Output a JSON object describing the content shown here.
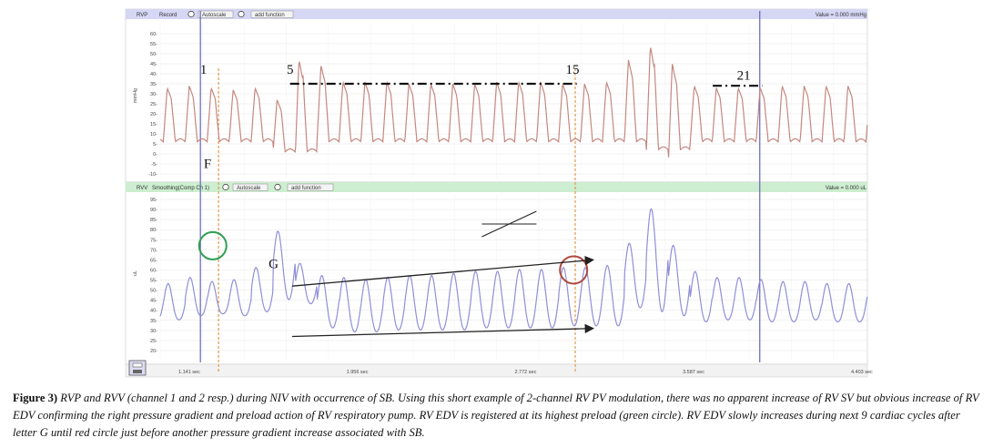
{
  "chart_data": [
    {
      "type": "line",
      "channel": "RVP",
      "toolbar": {
        "name": "RVP",
        "mode": "Record",
        "btn_autoscale": "Autoscale",
        "btn_add": "add function",
        "value": "Value = 0.000 mmHg"
      },
      "ylabel": "mmHg",
      "ylim": [
        -10,
        60
      ],
      "yticks": [
        -10,
        -5,
        0,
        5,
        10,
        15,
        20,
        25,
        30,
        35,
        40,
        45,
        50,
        55,
        60
      ],
      "color": "#c48880",
      "annotations": [
        {
          "text": "1",
          "t": 1.21,
          "y": 40
        },
        {
          "text": "5",
          "t": 1.63,
          "y": 40
        },
        {
          "text": "15",
          "t": 3.0,
          "y": 40
        },
        {
          "text": "21",
          "t": 3.83,
          "y": 37
        },
        {
          "text": "F",
          "t": 1.23,
          "y": -7
        }
      ],
      "dashdot_lines": [
        {
          "t1": 1.63,
          "t2": 3.02,
          "y": 35
        },
        {
          "t1": 3.68,
          "t2": 3.92,
          "y": 34
        }
      ]
    },
    {
      "type": "line",
      "channel": "RVV",
      "toolbar": {
        "name": "RVV",
        "mode": "Smoothing(Comp Ch 1)",
        "btn_autoscale": "Autoscale",
        "btn_add": "add function",
        "value": "Value = 0.000 uL"
      },
      "ylabel": "uL",
      "ylim": [
        20,
        95
      ],
      "yticks": [
        20,
        25,
        30,
        35,
        40,
        45,
        50,
        55,
        60,
        65,
        70,
        75,
        80,
        85,
        90,
        95
      ],
      "color": "#8f8fd9",
      "annotations": [
        {
          "text": "G",
          "t": 1.55,
          "y": 61
        }
      ],
      "circles": [
        {
          "color": "#2e9e55",
          "t": 1.255,
          "y": 72
        },
        {
          "color": "#b04a3f",
          "t": 3.005,
          "y": 60
        }
      ],
      "arrows": [
        {
          "t1": 1.64,
          "y1": 52,
          "t2": 3.1,
          "y2": 65
        },
        {
          "t1": 1.64,
          "y1": 27,
          "t2": 3.1,
          "y2": 31
        }
      ]
    }
  ],
  "xaxis": {
    "ticks": [
      {
        "t": 1.141,
        "label": "1.141 sec"
      },
      {
        "t": 1.956,
        "label": "1.956 sec"
      },
      {
        "t": 2.772,
        "label": "2.772 sec"
      },
      {
        "t": 3.587,
        "label": "3.587 sec"
      },
      {
        "t": 4.403,
        "label": "4.403 sec"
      }
    ],
    "range": [
      1.0,
      4.43
    ]
  },
  "markers": {
    "blue": [
      1.195,
      3.908
    ],
    "orange": [
      1.283,
      3.013
    ]
  },
  "legend_lines": [
    {
      "t1": 2.56,
      "y1": 0.0,
      "t2": 2.825,
      "y2": 1.0
    },
    {
      "t1": 2.56,
      "y1": 0.5,
      "t2": 2.825,
      "y2": 0.5
    }
  ],
  "caption": {
    "label": "Figure 3)",
    "text": " RVP and RVV (channel 1 and 2 resp.) during NIV with occurrence of SB. Using this short example of 2-channel RV PV modulation, there was no apparent increase of RV SV but obvious increase of RV EDV confirming the right pressure gradient and preload action of RV respiratory pump. RV EDV is registered at its highest preload (green circle). RV EDV slowly increases during next 9 cardiac cycles after letter G until red circle just before another pressure gradient increase associated with SB."
  },
  "colors": {
    "toolbar1": "#d6d6f5",
    "toolbar2": "#cdeed0",
    "grid": "#e4e4e4",
    "blue_marker": "#6464b4",
    "orange_marker": "#e0903a"
  }
}
